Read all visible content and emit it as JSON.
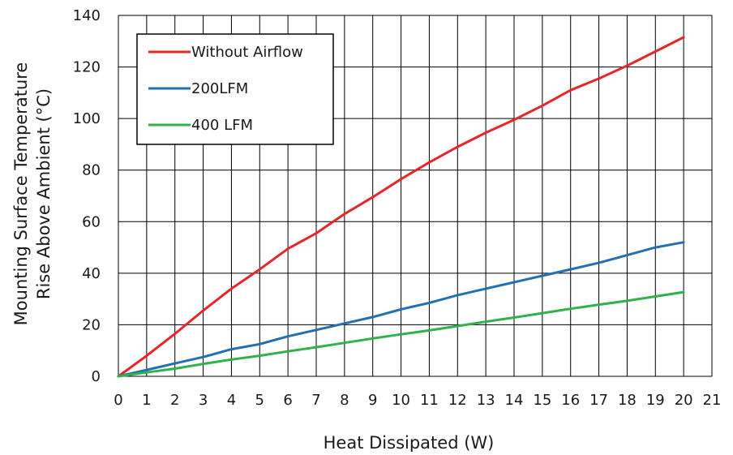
{
  "chart_data": {
    "type": "line",
    "title": "",
    "xlabel": "Heat Dissipated (W)",
    "ylabel_lines": [
      "Mounting Surface Temperature",
      "Rise Above  Ambient (°C)"
    ],
    "xlim": [
      0,
      21
    ],
    "ylim": [
      0,
      140
    ],
    "x_ticks": [
      0,
      1,
      2,
      3,
      4,
      5,
      6,
      7,
      8,
      9,
      10,
      11,
      12,
      13,
      14,
      15,
      16,
      17,
      18,
      19,
      20,
      21
    ],
    "y_ticks": [
      0,
      20,
      40,
      60,
      80,
      100,
      120,
      140
    ],
    "x_tick_labels": [
      "0",
      "1",
      "2",
      "3",
      "4",
      "5",
      "6",
      "7",
      "8",
      "9",
      "10",
      "11",
      "12",
      "13",
      "14",
      "15",
      "16",
      "17",
      "18",
      "19",
      "20",
      "21"
    ],
    "y_tick_labels": [
      "0",
      "20",
      "40",
      "60",
      "80",
      "100",
      "120",
      "140"
    ],
    "grid": true,
    "legend_position": "top-left",
    "series": [
      {
        "name": "Without Airflow",
        "color": "#e8252a",
        "x": [
          0,
          1,
          2,
          3,
          4,
          5,
          6,
          7,
          8,
          9,
          10,
          11,
          12,
          13,
          14,
          15,
          16,
          17,
          18,
          19,
          20
        ],
        "y": [
          0,
          8,
          16.5,
          25.5,
          34,
          41.5,
          49.5,
          55.5,
          63,
          69.5,
          76.5,
          83,
          89,
          94.5,
          99.5,
          105,
          111,
          115.5,
          120.5,
          126,
          131.5
        ]
      },
      {
        "name": "200LFM",
        "color": "#2270b0",
        "x": [
          0,
          1,
          2,
          3,
          4,
          5,
          6,
          7,
          8,
          9,
          10,
          11,
          12,
          13,
          14,
          15,
          16,
          17,
          18,
          19,
          20
        ],
        "y": [
          0,
          2.5,
          5,
          7.5,
          10.5,
          12.5,
          15.5,
          18,
          20.5,
          23,
          26,
          28.5,
          31.5,
          34,
          36.5,
          39,
          41.5,
          44,
          47,
          50,
          52
        ]
      },
      {
        "name": "400 LFM",
        "color": "#2fb24c",
        "x": [
          0,
          1,
          2,
          3,
          4,
          5,
          6,
          7,
          8,
          9,
          10,
          11,
          12,
          13,
          14,
          15,
          16,
          17,
          18,
          19,
          20
        ],
        "y": [
          0,
          1.5,
          3,
          4.8,
          6.5,
          8,
          9.7,
          11.3,
          13,
          14.7,
          16.3,
          17.8,
          19.5,
          21.2,
          22.8,
          24.5,
          26.2,
          27.8,
          29.3,
          31,
          32.7
        ]
      }
    ]
  }
}
